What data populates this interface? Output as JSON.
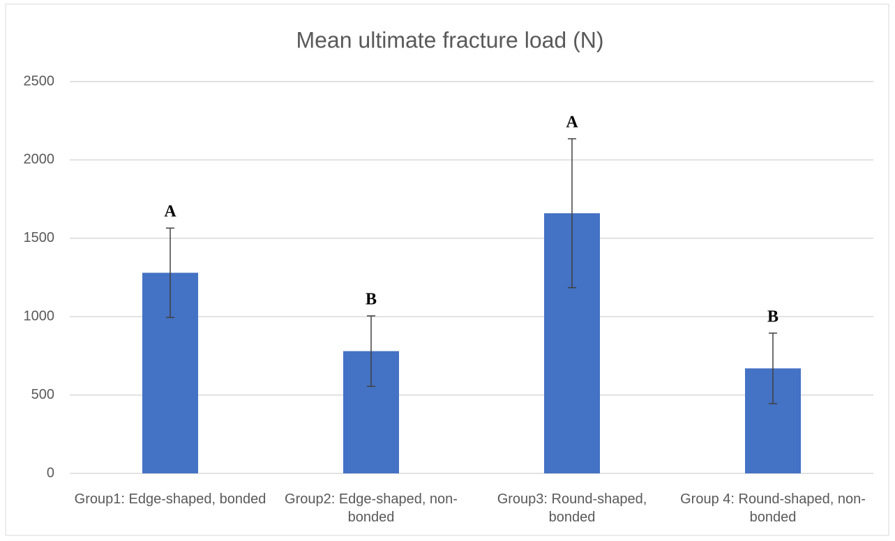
{
  "chart_data": {
    "type": "bar",
    "title": "Mean ultimate fracture load (N)",
    "categories": [
      "Group1: Edge-shaped, bonded",
      "Group2: Edge-shaped, non-bonded",
      "Group3: Round-shaped, bonded",
      "Group 4: Round-shaped, non-bonded"
    ],
    "values": [
      1280,
      780,
      1660,
      670
    ],
    "errors": [
      285,
      225,
      475,
      225
    ],
    "annotations": [
      "A",
      "B",
      "A",
      "B"
    ],
    "color": "#4472c4",
    "ylim": [
      0,
      2500
    ],
    "yticks": [
      0,
      500,
      1000,
      1500,
      2000,
      2500
    ],
    "grid": true
  }
}
